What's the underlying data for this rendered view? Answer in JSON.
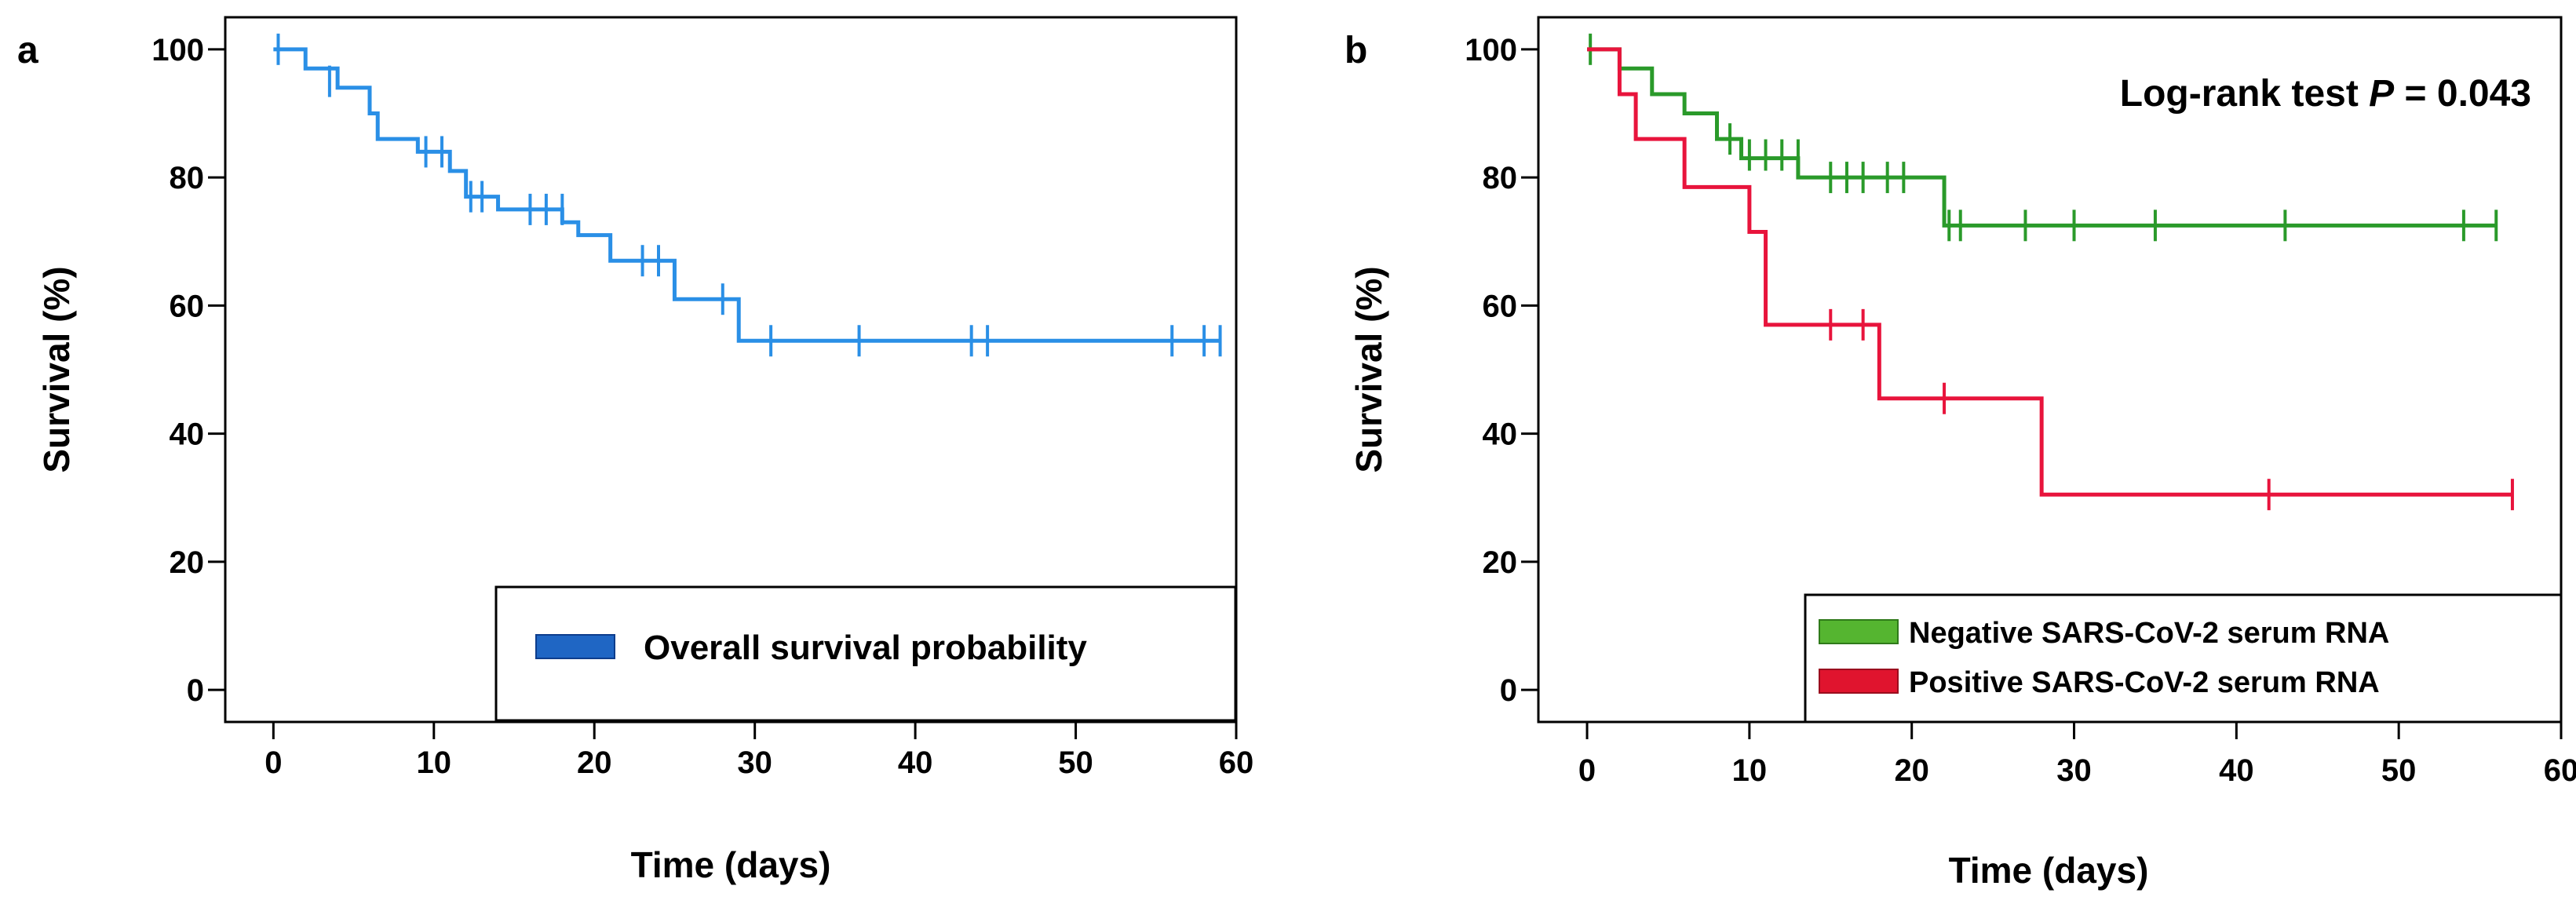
{
  "chart_data": [
    {
      "panel_label": "a",
      "type": "line",
      "subtype": "kaplan-meier",
      "title": "",
      "xlabel": "Time (days)",
      "ylabel": "Survival (%)",
      "xlim": [
        -3,
        60
      ],
      "ylim": [
        -5,
        105
      ],
      "xticks": [
        0,
        10,
        20,
        30,
        40,
        50,
        60
      ],
      "yticks": [
        0,
        20,
        40,
        60,
        80,
        100
      ],
      "xtick_labels": [
        "0",
        "10",
        "20",
        "30",
        "40",
        "50",
        "60"
      ],
      "ytick_labels": [
        "0",
        "20",
        "40",
        "60",
        "80",
        "100"
      ],
      "legend_position": "bottom-right",
      "series": [
        {
          "name": "Overall survival probability",
          "color": "#2a8fe6",
          "legend_color": "#1f66c4",
          "steps": [
            [
              0,
              100
            ],
            [
              2,
              97
            ],
            [
              4,
              94
            ],
            [
              6,
              90
            ],
            [
              6.5,
              86
            ],
            [
              9,
              84
            ],
            [
              11,
              81
            ],
            [
              12,
              77
            ],
            [
              14,
              75
            ],
            [
              18,
              73
            ],
            [
              19,
              71
            ],
            [
              21,
              67
            ],
            [
              25,
              61
            ],
            [
              29,
              54.5
            ],
            [
              59,
              54.5
            ]
          ],
          "censored": [
            [
              0.3,
              100
            ],
            [
              3.5,
              95
            ],
            [
              9.5,
              84
            ],
            [
              10.5,
              84
            ],
            [
              12.3,
              77
            ],
            [
              13,
              77
            ],
            [
              16,
              75
            ],
            [
              17,
              75
            ],
            [
              18,
              75
            ],
            [
              23,
              67
            ],
            [
              24,
              67
            ],
            [
              28,
              61
            ],
            [
              31,
              54.5
            ],
            [
              36.5,
              54.5
            ],
            [
              43.5,
              54.5
            ],
            [
              44.5,
              54.5
            ],
            [
              56,
              54.5
            ],
            [
              58,
              54.5
            ],
            [
              59,
              54.5
            ]
          ]
        }
      ]
    },
    {
      "panel_label": "b",
      "type": "line",
      "subtype": "kaplan-meier",
      "title": "",
      "xlabel": "Time (days)",
      "ylabel": "Survival (%)",
      "xlim": [
        -3,
        60
      ],
      "ylim": [
        -5,
        105
      ],
      "xticks": [
        0,
        10,
        20,
        30,
        40,
        50,
        60
      ],
      "yticks": [
        0,
        20,
        40,
        60,
        80,
        100
      ],
      "xtick_labels": [
        "0",
        "10",
        "20",
        "30",
        "40",
        "50",
        "60"
      ],
      "ytick_labels": [
        "0",
        "20",
        "40",
        "60",
        "80",
        "100"
      ],
      "annotation": {
        "prefix": "Log-rank test ",
        "italic": "P",
        "suffix": " = 0.043"
      },
      "legend_position": "bottom-right",
      "series": [
        {
          "name": "Negative SARS-CoV-2 serum RNA",
          "color": "#2a9a2a",
          "legend_color": "#55b530",
          "steps": [
            [
              0,
              100
            ],
            [
              2,
              97
            ],
            [
              4,
              93
            ],
            [
              6,
              90
            ],
            [
              8,
              86
            ],
            [
              9.5,
              83
            ],
            [
              13,
              80
            ],
            [
              22,
              72.5
            ],
            [
              56,
              72.5
            ]
          ],
          "censored": [
            [
              0.2,
              100
            ],
            [
              8.8,
              86
            ],
            [
              10,
              83.5
            ],
            [
              11,
              83.5
            ],
            [
              12,
              83.5
            ],
            [
              13,
              83.5
            ],
            [
              15,
              80
            ],
            [
              16,
              80
            ],
            [
              17,
              80
            ],
            [
              18.5,
              80
            ],
            [
              19.5,
              80
            ],
            [
              22.3,
              72.5
            ],
            [
              23,
              72.5
            ],
            [
              27,
              72.5
            ],
            [
              30,
              72.5
            ],
            [
              35,
              72.5
            ],
            [
              43,
              72.5
            ],
            [
              54,
              72.5
            ],
            [
              56,
              72.5
            ]
          ]
        },
        {
          "name": "Positive SARS-CoV-2 serum RNA",
          "color": "#e8143c",
          "legend_color": "#e0142e",
          "steps": [
            [
              0,
              100
            ],
            [
              2,
              93
            ],
            [
              3,
              86
            ],
            [
              6,
              78.5
            ],
            [
              10,
              71.5
            ],
            [
              11,
              57
            ],
            [
              18,
              45.5
            ],
            [
              28,
              30.5
            ],
            [
              57,
              30.5
            ]
          ],
          "censored": [
            [
              15,
              57
            ],
            [
              17,
              57
            ],
            [
              22,
              45.5
            ],
            [
              42,
              30.5
            ],
            [
              57,
              30.5
            ]
          ]
        }
      ]
    }
  ]
}
